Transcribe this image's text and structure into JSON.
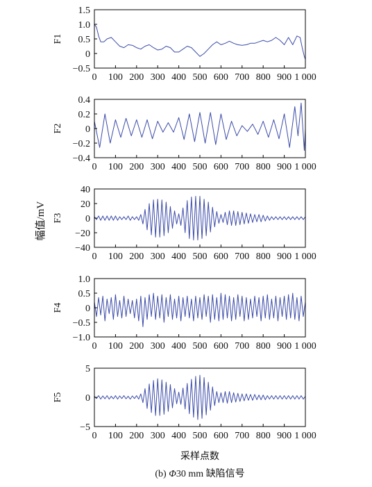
{
  "figure": {
    "caption_prefix": "(b) ",
    "caption_symbol": "Φ",
    "caption_rest": "30 mm 缺陷信号",
    "shared_ylabel": "幅值/mV",
    "shared_xlabel": "采样点数",
    "line_color": "#3b4ba8"
  },
  "chart_data": [
    {
      "type": "line",
      "ylabel": "F1",
      "xlim": [
        0,
        1000
      ],
      "ylim": [
        -0.5,
        1.5
      ],
      "xticks": [
        0,
        100,
        200,
        300,
        400,
        500,
        600,
        700,
        800,
        900,
        1000
      ],
      "xtick_labels": [
        "0",
        "100",
        "200",
        "300",
        "400",
        "500",
        "600",
        "700",
        "800",
        "900",
        "1 000"
      ],
      "yticks": [
        -0.5,
        0,
        0.5,
        1.0,
        1.5
      ],
      "ytick_labels": [
        "−0.5",
        "0",
        "0.5",
        "1.0",
        "1.5"
      ],
      "series": [
        {
          "x": [
            0,
            10,
            20,
            30,
            45,
            60,
            80,
            100,
            120,
            140,
            160,
            180,
            200,
            220,
            240,
            260,
            280,
            300,
            320,
            340,
            360,
            380,
            400,
            420,
            440,
            460,
            480,
            500,
            520,
            540,
            560,
            580,
            600,
            620,
            640,
            660,
            680,
            700,
            720,
            740,
            760,
            780,
            800,
            820,
            840,
            860,
            880,
            900,
            920,
            940,
            960,
            975,
            985,
            995,
            1000
          ],
          "y": [
            1.0,
            0.9,
            0.6,
            0.4,
            0.4,
            0.5,
            0.55,
            0.4,
            0.25,
            0.2,
            0.3,
            0.28,
            0.2,
            0.15,
            0.25,
            0.3,
            0.2,
            0.12,
            0.15,
            0.25,
            0.2,
            0.05,
            0.05,
            0.15,
            0.25,
            0.2,
            0.05,
            -0.1,
            0.0,
            0.15,
            0.3,
            0.4,
            0.3,
            0.35,
            0.42,
            0.35,
            0.3,
            0.28,
            0.3,
            0.35,
            0.35,
            0.4,
            0.45,
            0.4,
            0.45,
            0.55,
            0.45,
            0.3,
            0.55,
            0.3,
            0.6,
            0.55,
            0.2,
            -0.1,
            -0.2
          ]
        }
      ]
    },
    {
      "type": "line",
      "ylabel": "F2",
      "xlim": [
        0,
        1000
      ],
      "ylim": [
        -0.4,
        0.4
      ],
      "xticks": [
        0,
        100,
        200,
        300,
        400,
        500,
        600,
        700,
        800,
        900,
        1000
      ],
      "xtick_labels": [
        "0",
        "100",
        "200",
        "300",
        "400",
        "500",
        "600",
        "700",
        "800",
        "900",
        "1 000"
      ],
      "yticks": [
        -0.4,
        -0.2,
        0,
        0.2,
        0.4
      ],
      "ytick_labels": [
        "−0.4",
        "−0.2",
        "0",
        "0.2",
        "0.4"
      ],
      "series": [
        {
          "x": [
            0,
            25,
            50,
            75,
            100,
            125,
            150,
            175,
            200,
            225,
            250,
            275,
            300,
            325,
            350,
            375,
            400,
            425,
            450,
            475,
            500,
            525,
            550,
            575,
            600,
            625,
            650,
            675,
            700,
            725,
            750,
            775,
            800,
            825,
            850,
            875,
            900,
            925,
            950,
            965,
            980,
            995,
            1000
          ],
          "y": [
            0.1,
            -0.26,
            0.2,
            -0.2,
            0.12,
            -0.12,
            0.14,
            -0.1,
            0.12,
            -0.12,
            0.12,
            -0.14,
            0.1,
            -0.05,
            0.08,
            -0.05,
            0.15,
            -0.15,
            0.2,
            -0.18,
            0.22,
            -0.2,
            0.22,
            -0.22,
            0.2,
            -0.15,
            0.1,
            -0.1,
            0.04,
            -0.04,
            0.06,
            -0.08,
            0.1,
            -0.12,
            0.12,
            -0.14,
            0.2,
            -0.26,
            0.3,
            -0.1,
            0.35,
            -0.3,
            0.0
          ]
        }
      ]
    },
    {
      "type": "line",
      "ylabel": "F3",
      "xlim": [
        0,
        1000
      ],
      "ylim": [
        -40,
        40
      ],
      "xticks": [
        0,
        100,
        200,
        300,
        400,
        500,
        600,
        700,
        800,
        900,
        1000
      ],
      "xtick_labels": [
        "0",
        "100",
        "200",
        "300",
        "400",
        "500",
        "600",
        "700",
        "800",
        "900",
        "1 000"
      ],
      "yticks": [
        -40,
        -20,
        0,
        20,
        40
      ],
      "ytick_labels": [
        "−40",
        "−20",
        "0",
        "20",
        "40"
      ],
      "series": [
        {
          "x": [
            0,
            10,
            20,
            30,
            40,
            50,
            60,
            70,
            80,
            90,
            100,
            110,
            120,
            130,
            140,
            150,
            160,
            170,
            180,
            190,
            200,
            210,
            220,
            230,
            240,
            250,
            260,
            270,
            280,
            290,
            300,
            310,
            320,
            330,
            340,
            350,
            360,
            370,
            380,
            390,
            400,
            410,
            420,
            430,
            440,
            450,
            460,
            470,
            480,
            490,
            500,
            510,
            520,
            530,
            540,
            550,
            560,
            570,
            580,
            590,
            600,
            610,
            620,
            630,
            640,
            650,
            660,
            670,
            680,
            690,
            700,
            710,
            720,
            730,
            740,
            750,
            760,
            770,
            780,
            790,
            800,
            810,
            820,
            830,
            840,
            850,
            860,
            870,
            880,
            890,
            900,
            910,
            920,
            930,
            940,
            950,
            960,
            970,
            980,
            990,
            1000
          ],
          "y": [
            2,
            -2,
            3,
            -3,
            3,
            -3,
            3,
            -3,
            3,
            -3,
            3,
            -3,
            2,
            -2,
            2,
            -2,
            3,
            -3,
            2,
            -2,
            2,
            -3,
            5,
            -8,
            12,
            -16,
            20,
            -23,
            25,
            -26,
            26,
            -26,
            25,
            -24,
            22,
            -20,
            16,
            -14,
            10,
            -8,
            6,
            -10,
            14,
            -20,
            24,
            -28,
            29,
            -30,
            30,
            -30,
            30,
            -28,
            26,
            -24,
            22,
            -19,
            15,
            -12,
            9,
            -7,
            5,
            -6,
            8,
            -9,
            10,
            -10,
            10,
            -10,
            9,
            -9,
            8,
            -8,
            7,
            -7,
            6,
            -6,
            5,
            -5,
            5,
            -5,
            4,
            -4,
            3,
            -3,
            2,
            -2,
            2,
            -2,
            2,
            -2,
            2,
            -2,
            2,
            -2,
            2,
            -2,
            2,
            -2,
            2,
            -2,
            2
          ]
        }
      ]
    },
    {
      "type": "line",
      "ylabel": "F4",
      "xlim": [
        0,
        1000
      ],
      "ylim": [
        -1.0,
        1.0
      ],
      "xticks": [
        0,
        100,
        200,
        300,
        400,
        500,
        600,
        700,
        800,
        900,
        1000
      ],
      "xtick_labels": [
        "0",
        "100",
        "200",
        "300",
        "400",
        "500",
        "600",
        "700",
        "800",
        "900",
        "1 000"
      ],
      "yticks": [
        -1.0,
        -0.5,
        0,
        0.5,
        1.0
      ],
      "ytick_labels": [
        "−1.0",
        "−0.5",
        "0",
        "0.5",
        "1.0"
      ],
      "series": [
        {
          "x": [
            0,
            10,
            20,
            30,
            40,
            50,
            60,
            70,
            80,
            90,
            100,
            110,
            120,
            130,
            140,
            150,
            160,
            170,
            180,
            190,
            200,
            210,
            220,
            230,
            240,
            250,
            260,
            270,
            280,
            290,
            300,
            310,
            320,
            330,
            340,
            350,
            360,
            370,
            380,
            390,
            400,
            410,
            420,
            430,
            440,
            450,
            460,
            470,
            480,
            490,
            500,
            510,
            520,
            530,
            540,
            550,
            560,
            570,
            580,
            590,
            600,
            610,
            620,
            630,
            640,
            650,
            660,
            670,
            680,
            690,
            700,
            710,
            720,
            730,
            740,
            750,
            760,
            770,
            780,
            790,
            800,
            810,
            820,
            830,
            840,
            850,
            860,
            870,
            880,
            890,
            900,
            910,
            920,
            930,
            940,
            950,
            960,
            970,
            980,
            990,
            1000
          ],
          "y": [
            0.2,
            -0.3,
            0.35,
            -0.25,
            0.4,
            -0.45,
            0.3,
            -0.2,
            0.35,
            -0.4,
            0.45,
            -0.3,
            0.25,
            -0.35,
            0.4,
            -0.3,
            0.3,
            -0.2,
            0.25,
            -0.35,
            0.3,
            -0.45,
            0.4,
            -0.65,
            0.35,
            -0.4,
            0.45,
            -0.3,
            0.5,
            -0.4,
            0.4,
            -0.35,
            0.45,
            -0.5,
            0.35,
            -0.3,
            0.45,
            -0.4,
            0.3,
            -0.35,
            0.4,
            -0.45,
            0.35,
            -0.3,
            0.4,
            -0.35,
            0.3,
            -0.45,
            0.4,
            -0.35,
            0.35,
            -0.4,
            0.45,
            -0.3,
            0.4,
            -0.5,
            0.45,
            -0.4,
            0.35,
            -0.45,
            0.5,
            -0.4,
            0.45,
            -0.35,
            0.4,
            -0.45,
            0.35,
            -0.4,
            0.45,
            -0.3,
            0.4,
            -0.45,
            0.35,
            -0.4,
            0.3,
            -0.35,
            0.4,
            -0.3,
            0.35,
            -0.45,
            0.4,
            -0.35,
            0.45,
            -0.4,
            0.3,
            -0.35,
            0.4,
            -0.45,
            0.35,
            -0.3,
            0.4,
            -0.4,
            0.45,
            -0.35,
            0.5,
            -0.4,
            0.35,
            -0.45,
            0.4,
            -0.3,
            0.2
          ]
        }
      ]
    },
    {
      "type": "line",
      "ylabel": "F5",
      "xlim": [
        0,
        1000
      ],
      "ylim": [
        -5,
        5
      ],
      "xticks": [
        0,
        100,
        200,
        300,
        400,
        500,
        600,
        700,
        800,
        900,
        1000
      ],
      "xtick_labels": [
        "0",
        "100",
        "200",
        "300",
        "400",
        "500",
        "600",
        "700",
        "800",
        "900",
        "1 000"
      ],
      "yticks": [
        -5,
        0,
        5
      ],
      "ytick_labels": [
        "−5",
        "0",
        "5"
      ],
      "series": [
        {
          "x": [
            0,
            10,
            20,
            30,
            40,
            50,
            60,
            70,
            80,
            90,
            100,
            110,
            120,
            130,
            140,
            150,
            160,
            170,
            180,
            190,
            200,
            210,
            220,
            230,
            240,
            250,
            260,
            270,
            280,
            290,
            300,
            310,
            320,
            330,
            340,
            350,
            360,
            370,
            380,
            390,
            400,
            410,
            420,
            430,
            440,
            450,
            460,
            470,
            480,
            490,
            500,
            510,
            520,
            530,
            540,
            550,
            560,
            570,
            580,
            590,
            600,
            610,
            620,
            630,
            640,
            650,
            660,
            670,
            680,
            690,
            700,
            710,
            720,
            730,
            740,
            750,
            760,
            770,
            780,
            790,
            800,
            810,
            820,
            830,
            840,
            850,
            860,
            870,
            880,
            890,
            900,
            910,
            920,
            930,
            940,
            950,
            960,
            970,
            980,
            990,
            1000
          ],
          "y": [
            0.2,
            -0.2,
            0.3,
            -0.3,
            0.25,
            -0.25,
            0.3,
            -0.3,
            0.2,
            -0.25,
            0.3,
            -0.3,
            0.25,
            -0.2,
            0.3,
            -0.25,
            0.2,
            -0.3,
            0.25,
            -0.2,
            0.3,
            -0.3,
            0.6,
            -0.9,
            1.5,
            -1.9,
            2.3,
            -2.6,
            2.9,
            -3.1,
            3.2,
            -3.1,
            3.0,
            -2.9,
            2.6,
            -2.4,
            2.2,
            -1.8,
            1.5,
            -1.1,
            0.9,
            -1.2,
            1.6,
            -2.0,
            2.4,
            -2.8,
            3.1,
            -3.4,
            3.6,
            -3.8,
            3.8,
            -3.6,
            3.4,
            -3.0,
            2.6,
            -2.2,
            1.8,
            -1.4,
            1.0,
            -0.9,
            0.8,
            -0.9,
            1.0,
            -1.0,
            1.0,
            -0.9,
            0.8,
            -0.8,
            0.7,
            -0.7,
            0.6,
            -0.6,
            0.6,
            -0.5,
            0.5,
            -0.5,
            0.5,
            -0.4,
            0.4,
            -0.4,
            0.4,
            -0.4,
            0.3,
            -0.3,
            0.3,
            -0.3,
            0.3,
            -0.3,
            0.3,
            -0.3,
            0.3,
            -0.3,
            0.3,
            -0.3,
            0.3,
            -0.3,
            0.3,
            -0.3,
            0.3,
            -0.3,
            0.2
          ]
        }
      ]
    }
  ]
}
